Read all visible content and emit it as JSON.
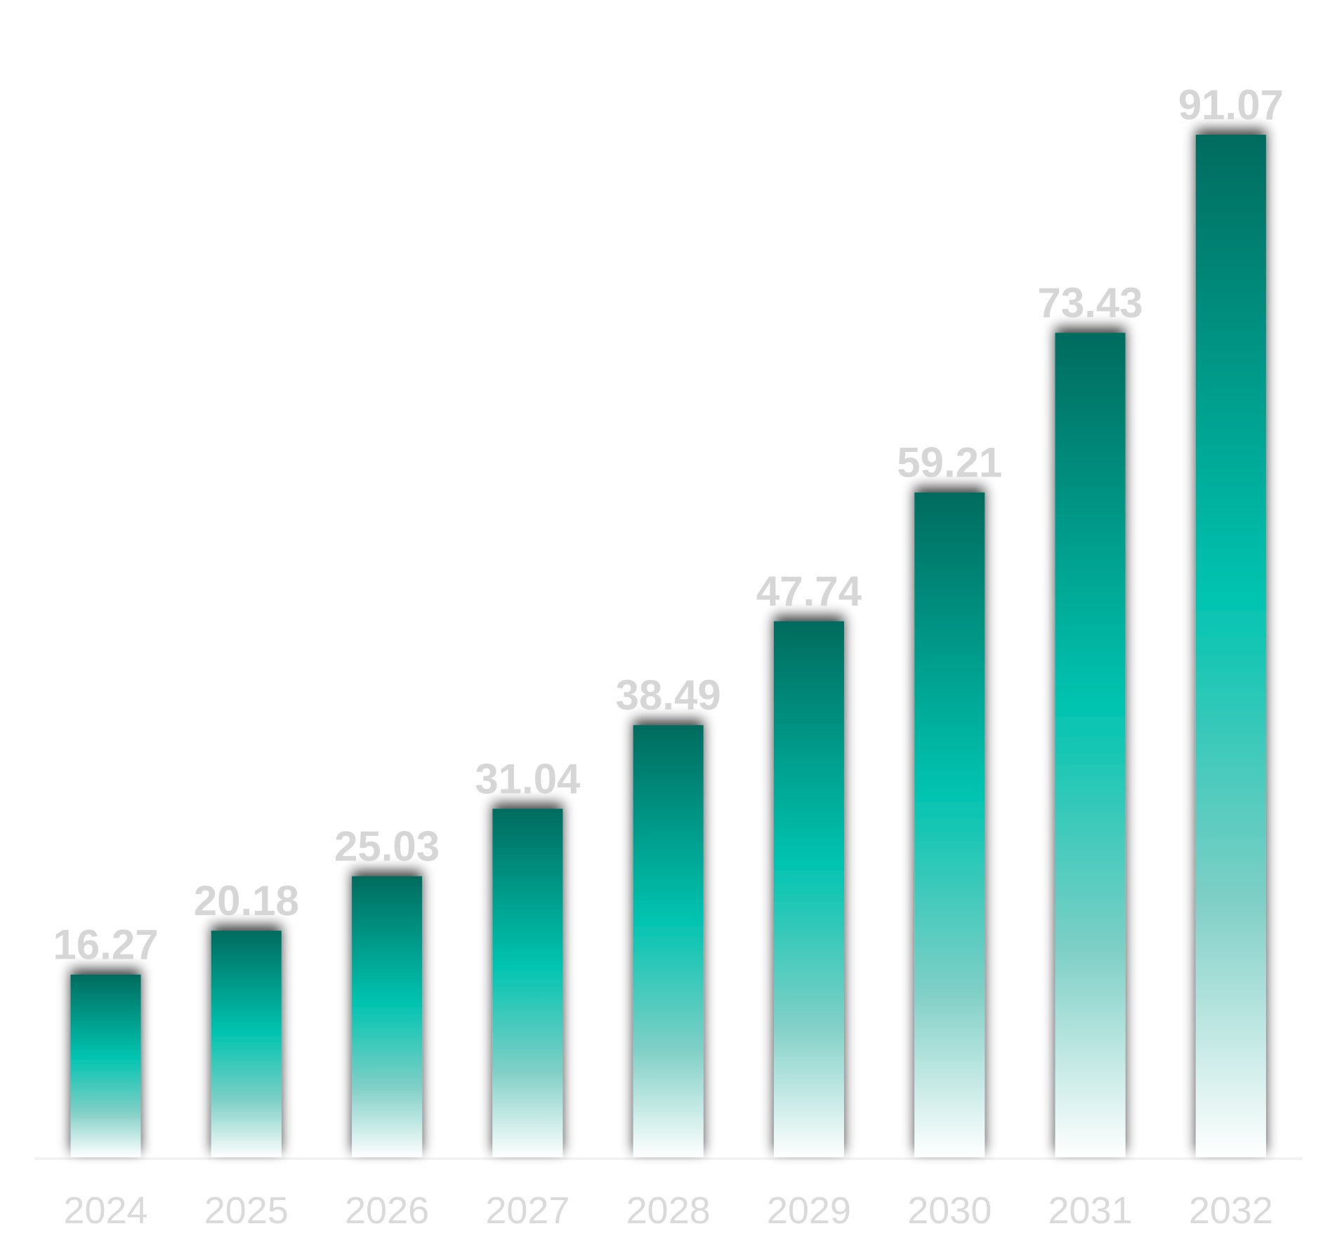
{
  "chart_data": {
    "type": "bar",
    "title": "",
    "xlabel": "",
    "ylabel": "",
    "categories": [
      "2024",
      "2025",
      "2026",
      "2027",
      "2028",
      "2029",
      "2030",
      "2031",
      "2032"
    ],
    "values": [
      16.27,
      20.18,
      25.03,
      31.04,
      38.49,
      47.74,
      59.21,
      73.43,
      91.07
    ],
    "value_labels": [
      "16.27",
      "20.18",
      "25.03",
      "31.04",
      "38.49",
      "47.74",
      "59.21",
      "73.43",
      "91.07"
    ],
    "ylim": [
      0,
      91.07
    ],
    "grid": false,
    "legend": "none",
    "colors": {
      "bar_top": "#006b5e",
      "bar_mid": "#00c4b0",
      "bar_bottom": "#ffffff",
      "label": "#d6d6d6",
      "axis": "#f2f2f2"
    }
  }
}
